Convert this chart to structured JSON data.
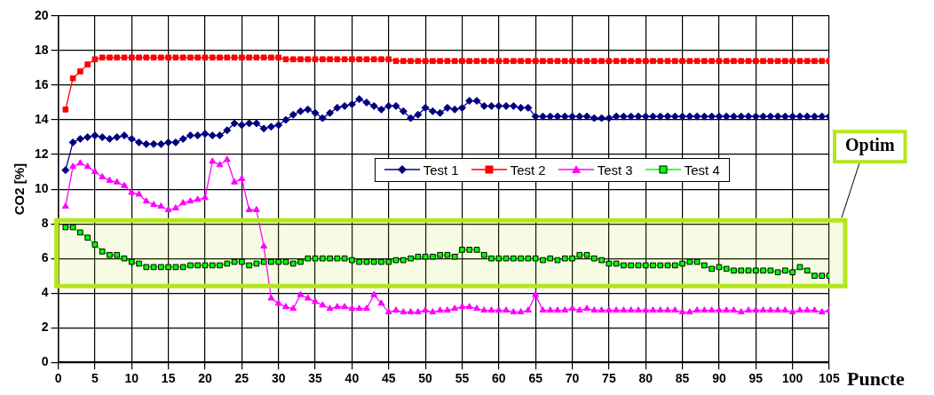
{
  "chart_data": {
    "type": "line",
    "xlabel": "Puncte",
    "ylabel": "CO2 [%]",
    "x": [
      1,
      2,
      3,
      4,
      5,
      6,
      7,
      8,
      9,
      10,
      11,
      12,
      13,
      14,
      15,
      16,
      17,
      18,
      19,
      20,
      21,
      22,
      23,
      24,
      25,
      26,
      27,
      28,
      29,
      30,
      31,
      32,
      33,
      34,
      35,
      36,
      37,
      38,
      39,
      40,
      41,
      42,
      43,
      44,
      45,
      46,
      47,
      48,
      49,
      50,
      51,
      52,
      53,
      54,
      55,
      56,
      57,
      58,
      59,
      60,
      61,
      62,
      63,
      64,
      65,
      66,
      67,
      68,
      69,
      70,
      71,
      72,
      73,
      74,
      75,
      76,
      77,
      78,
      79,
      80,
      81,
      82,
      83,
      84,
      85,
      86,
      87,
      88,
      89,
      90,
      91,
      92,
      93,
      94,
      95,
      96,
      97,
      98,
      99,
      100,
      101,
      102,
      103,
      104,
      105
    ],
    "series": [
      {
        "name": "Test 1",
        "color": "#000080",
        "marker": "diamond",
        "values": [
          11.1,
          12.7,
          12.9,
          13.0,
          13.1,
          13.0,
          12.9,
          13.0,
          13.1,
          12.9,
          12.7,
          12.6,
          12.6,
          12.6,
          12.7,
          12.7,
          12.9,
          13.1,
          13.1,
          13.2,
          13.1,
          13.1,
          13.4,
          13.8,
          13.7,
          13.8,
          13.8,
          13.5,
          13.6,
          13.7,
          14.0,
          14.3,
          14.5,
          14.6,
          14.4,
          14.1,
          14.4,
          14.7,
          14.8,
          14.9,
          15.2,
          15.0,
          14.8,
          14.6,
          14.8,
          14.8,
          14.5,
          14.1,
          14.3,
          14.7,
          14.5,
          14.4,
          14.7,
          14.6,
          14.7,
          15.1,
          15.1,
          14.8,
          14.8,
          14.8,
          14.8,
          14.8,
          14.7,
          14.7,
          14.2,
          14.2,
          14.2,
          14.2,
          14.2,
          14.2,
          14.2,
          14.2,
          14.1,
          14.1,
          14.1,
          14.2,
          14.2,
          14.2,
          14.2,
          14.2,
          14.2,
          14.2,
          14.2,
          14.2,
          14.2,
          14.2,
          14.2,
          14.2,
          14.2,
          14.2,
          14.2,
          14.2,
          14.2,
          14.2,
          14.2,
          14.2,
          14.2,
          14.2,
          14.2,
          14.2,
          14.2,
          14.2,
          14.2,
          14.2,
          14.2
        ]
      },
      {
        "name": "Test 2",
        "color": "#ff0000",
        "marker": "square",
        "values": [
          14.6,
          16.4,
          16.8,
          17.2,
          17.5,
          17.6,
          17.6,
          17.6,
          17.6,
          17.6,
          17.6,
          17.6,
          17.6,
          17.6,
          17.6,
          17.6,
          17.6,
          17.6,
          17.6,
          17.6,
          17.6,
          17.6,
          17.6,
          17.6,
          17.6,
          17.6,
          17.6,
          17.6,
          17.6,
          17.6,
          17.5,
          17.5,
          17.5,
          17.5,
          17.5,
          17.5,
          17.5,
          17.5,
          17.5,
          17.5,
          17.5,
          17.5,
          17.5,
          17.5,
          17.5,
          17.4,
          17.4,
          17.4,
          17.4,
          17.4,
          17.4,
          17.4,
          17.4,
          17.4,
          17.4,
          17.4,
          17.4,
          17.4,
          17.4,
          17.4,
          17.4,
          17.4,
          17.4,
          17.4,
          17.4,
          17.4,
          17.4,
          17.4,
          17.4,
          17.4,
          17.4,
          17.4,
          17.4,
          17.4,
          17.4,
          17.4,
          17.4,
          17.4,
          17.4,
          17.4,
          17.4,
          17.4,
          17.4,
          17.4,
          17.4,
          17.4,
          17.4,
          17.4,
          17.4,
          17.4,
          17.4,
          17.4,
          17.4,
          17.4,
          17.4,
          17.4,
          17.4,
          17.4,
          17.4,
          17.4,
          17.4,
          17.4,
          17.4,
          17.4,
          17.4
        ]
      },
      {
        "name": "Test 3",
        "color": "#ff00ff",
        "marker": "triangle",
        "values": [
          9.0,
          11.3,
          11.5,
          11.3,
          11.0,
          10.7,
          10.5,
          10.4,
          10.2,
          9.8,
          9.7,
          9.3,
          9.1,
          9.0,
          8.8,
          8.9,
          9.2,
          9.3,
          9.4,
          9.5,
          11.6,
          11.4,
          11.7,
          10.4,
          10.6,
          8.8,
          8.8,
          6.7,
          3.7,
          3.4,
          3.2,
          3.1,
          3.9,
          3.7,
          3.5,
          3.3,
          3.1,
          3.2,
          3.2,
          3.1,
          3.1,
          3.1,
          3.9,
          3.4,
          2.9,
          3.0,
          2.9,
          2.9,
          2.9,
          3.0,
          2.9,
          3.0,
          3.0,
          3.1,
          3.2,
          3.2,
          3.1,
          3.0,
          3.0,
          3.0,
          3.0,
          2.9,
          2.9,
          3.0,
          3.9,
          3.0,
          3.0,
          3.0,
          3.0,
          3.1,
          3.0,
          3.1,
          3.0,
          3.0,
          3.0,
          3.0,
          3.0,
          3.0,
          3.0,
          3.0,
          3.0,
          3.0,
          3.0,
          3.0,
          2.9,
          2.9,
          3.0,
          3.0,
          3.0,
          3.0,
          3.0,
          3.0,
          2.9,
          3.0,
          3.0,
          3.0,
          3.0,
          3.0,
          3.0,
          2.9,
          3.0,
          3.0,
          3.0,
          2.9,
          3.0
        ]
      },
      {
        "name": "Test 4",
        "color": "#00ff00",
        "marker": "square",
        "values": [
          7.8,
          7.8,
          7.5,
          7.2,
          6.8,
          6.4,
          6.2,
          6.2,
          6.0,
          5.8,
          5.7,
          5.5,
          5.5,
          5.5,
          5.5,
          5.5,
          5.5,
          5.6,
          5.6,
          5.6,
          5.6,
          5.6,
          5.7,
          5.8,
          5.8,
          5.6,
          5.7,
          5.8,
          5.8,
          5.8,
          5.8,
          5.7,
          5.8,
          6.0,
          6.0,
          6.0,
          6.0,
          6.0,
          6.0,
          5.9,
          5.8,
          5.8,
          5.8,
          5.8,
          5.8,
          5.9,
          5.9,
          6.0,
          6.1,
          6.1,
          6.1,
          6.2,
          6.2,
          6.1,
          6.5,
          6.5,
          6.5,
          6.2,
          6.0,
          6.0,
          6.0,
          6.0,
          6.0,
          6.0,
          6.0,
          5.9,
          6.0,
          5.9,
          6.0,
          6.0,
          6.2,
          6.2,
          6.0,
          5.9,
          5.7,
          5.7,
          5.6,
          5.6,
          5.6,
          5.6,
          5.6,
          5.6,
          5.6,
          5.6,
          5.7,
          5.8,
          5.8,
          5.6,
          5.4,
          5.5,
          5.4,
          5.3,
          5.3,
          5.3,
          5.3,
          5.3,
          5.3,
          5.2,
          5.3,
          5.2,
          5.5,
          5.3,
          5.0,
          5.0,
          5.0
        ]
      }
    ],
    "xlim": [
      0,
      105
    ],
    "xticks": [
      0,
      5,
      10,
      15,
      20,
      25,
      30,
      35,
      40,
      45,
      50,
      55,
      60,
      65,
      70,
      75,
      80,
      85,
      90,
      95,
      100,
      105
    ],
    "ylim": [
      0,
      20
    ],
    "yticks": [
      0,
      2,
      4,
      6,
      8,
      10,
      12,
      14,
      16,
      18,
      20
    ],
    "grid": true,
    "legend": "right",
    "line_style": "solid",
    "bands": [
      {
        "axis": "y",
        "from": 4.4,
        "to": 8.2,
        "label": "Optim",
        "color": "#b5e61d"
      }
    ]
  }
}
